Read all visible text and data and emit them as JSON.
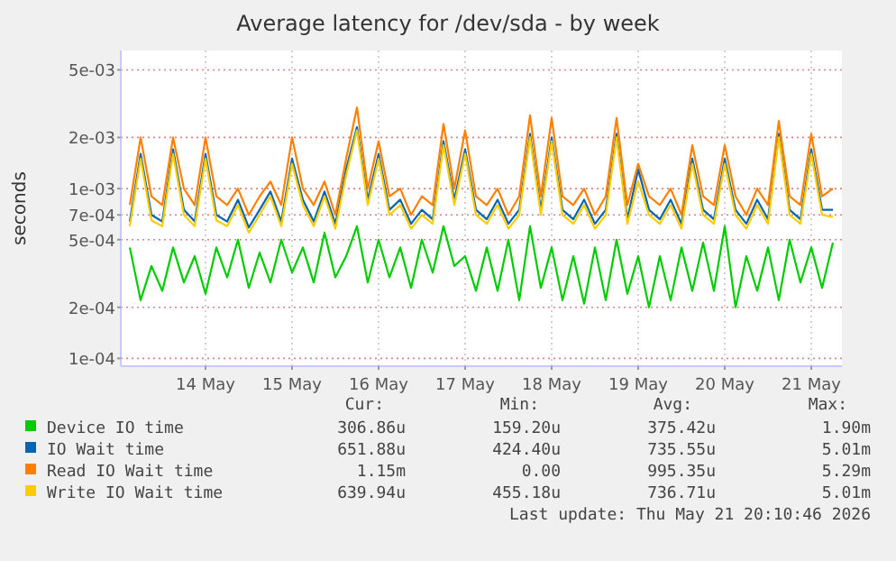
{
  "chart_data": {
    "type": "line",
    "title": "Average latency for /dev/sda - by week",
    "ylabel": "seconds",
    "log": true,
    "grid": true,
    "legend": "bottom",
    "marker": "none",
    "line_style": "solid",
    "x": [
      "2026-05-13T15:00",
      "2026-05-13T18:00",
      "2026-05-13T21:00",
      "2026-05-14T00:00",
      "2026-05-14T03:00",
      "2026-05-14T06:00",
      "2026-05-14T09:00",
      "2026-05-14T12:00",
      "2026-05-14T15:00",
      "2026-05-14T18:00",
      "2026-05-14T21:00",
      "2026-05-15T00:00",
      "2026-05-15T03:00",
      "2026-05-15T06:00",
      "2026-05-15T09:00",
      "2026-05-15T12:00",
      "2026-05-15T15:00",
      "2026-05-15T18:00",
      "2026-05-15T21:00",
      "2026-05-16T00:00",
      "2026-05-16T03:00",
      "2026-05-16T06:00",
      "2026-05-16T09:00",
      "2026-05-16T12:00",
      "2026-05-16T15:00",
      "2026-05-16T18:00",
      "2026-05-16T21:00",
      "2026-05-17T00:00",
      "2026-05-17T03:00",
      "2026-05-17T06:00",
      "2026-05-17T09:00",
      "2026-05-17T12:00",
      "2026-05-17T15:00",
      "2026-05-17T18:00",
      "2026-05-17T21:00",
      "2026-05-18T00:00",
      "2026-05-18T03:00",
      "2026-05-18T06:00",
      "2026-05-18T09:00",
      "2026-05-18T12:00",
      "2026-05-18T15:00",
      "2026-05-18T18:00",
      "2026-05-18T21:00",
      "2026-05-19T00:00",
      "2026-05-19T03:00",
      "2026-05-19T06:00",
      "2026-05-19T09:00",
      "2026-05-19T12:00",
      "2026-05-19T15:00",
      "2026-05-19T18:00",
      "2026-05-19T21:00",
      "2026-05-20T00:00",
      "2026-05-20T03:00",
      "2026-05-20T06:00",
      "2026-05-20T09:00",
      "2026-05-20T12:00",
      "2026-05-20T15:00",
      "2026-05-20T18:00",
      "2026-05-20T21:00",
      "2026-05-21T00:00",
      "2026-05-21T03:00",
      "2026-05-21T06:00",
      "2026-05-21T09:00",
      "2026-05-21T12:00",
      "2026-05-21T15:00",
      "2026-05-21T18:00"
    ],
    "xlim": [
      "2026-05-13T12:30",
      "2026-05-21T20:30"
    ],
    "xticks": [
      {
        "value": "2026-05-14T12:00",
        "label": "14 May"
      },
      {
        "value": "2026-05-15T12:00",
        "label": "15 May"
      },
      {
        "value": "2026-05-16T12:00",
        "label": "16 May"
      },
      {
        "value": "2026-05-17T12:00",
        "label": "17 May"
      },
      {
        "value": "2026-05-18T12:00",
        "label": "18 May"
      },
      {
        "value": "2026-05-19T12:00",
        "label": "19 May"
      },
      {
        "value": "2026-05-20T12:00",
        "label": "20 May"
      },
      {
        "value": "2026-05-21T12:00",
        "label": "21 May"
      }
    ],
    "ylim": [
      9e-05,
      0.0065
    ],
    "yticks": [
      {
        "value": 0.0001,
        "label": "1e-04"
      },
      {
        "value": 0.0002,
        "label": "2e-04"
      },
      {
        "value": 0.0005,
        "label": "5e-04"
      },
      {
        "value": 0.0007,
        "label": "7e-04"
      },
      {
        "value": 0.001,
        "label": "1e-03"
      },
      {
        "value": 0.002,
        "label": "2e-03"
      },
      {
        "value": 0.005,
        "label": "5e-03"
      }
    ],
    "series": [
      {
        "name": "Device IO time",
        "color": "#00cc00",
        "values": [
          0.00045,
          0.00022,
          0.00035,
          0.00025,
          0.00045,
          0.00028,
          0.0004,
          0.00024,
          0.00045,
          0.0003,
          0.0005,
          0.00026,
          0.00042,
          0.00028,
          0.0005,
          0.00032,
          0.00045,
          0.00028,
          0.00055,
          0.0003,
          0.0004,
          0.0006,
          0.00028,
          0.0005,
          0.0003,
          0.00045,
          0.00026,
          0.0005,
          0.00032,
          0.0006,
          0.00035,
          0.0004,
          0.00025,
          0.00045,
          0.00025,
          0.0005,
          0.00022,
          0.0006,
          0.00026,
          0.00045,
          0.00022,
          0.0004,
          0.00021,
          0.00045,
          0.00022,
          0.0005,
          0.00024,
          0.0004,
          0.0002,
          0.0004,
          0.00022,
          0.00045,
          0.00025,
          0.00048,
          0.00025,
          0.0006,
          0.0002,
          0.0004,
          0.00025,
          0.00045,
          0.00022,
          0.0005,
          0.00028,
          0.00045,
          0.00026,
          0.00048
        ]
      },
      {
        "name": "IO Wait time",
        "color": "#0066b3",
        "values": [
          0.00064,
          0.0016,
          0.0007,
          0.00064,
          0.0017,
          0.00075,
          0.00064,
          0.0016,
          0.0007,
          0.00064,
          0.00086,
          0.00059,
          0.00075,
          0.00096,
          0.00064,
          0.0015,
          0.00086,
          0.00064,
          0.00096,
          0.00062,
          0.0013,
          0.0023,
          0.00086,
          0.0016,
          0.00075,
          0.00086,
          0.00062,
          0.00075,
          0.00066,
          0.0019,
          0.00086,
          0.0017,
          0.00075,
          0.00066,
          0.00086,
          0.00062,
          0.00075,
          0.0021,
          0.00075,
          0.002,
          0.00075,
          0.00066,
          0.00086,
          0.00062,
          0.00075,
          0.0021,
          0.00066,
          0.0013,
          0.00075,
          0.00066,
          0.00086,
          0.00062,
          0.0015,
          0.00075,
          0.00066,
          0.0015,
          0.00075,
          0.00062,
          0.00086,
          0.00066,
          0.0021,
          0.00075,
          0.00066,
          0.0017,
          0.00075,
          0.00075
        ]
      },
      {
        "name": "Read IO Wait time",
        "color": "#ff8000",
        "values": [
          0.0008,
          0.002,
          0.0009,
          0.0008,
          0.002,
          0.001,
          0.0008,
          0.002,
          0.0009,
          0.0008,
          0.001,
          0.0007,
          0.0009,
          0.0011,
          0.0008,
          0.002,
          0.001,
          0.0008,
          0.0011,
          0.0007,
          0.0015,
          0.003,
          0.001,
          0.0019,
          0.0009,
          0.001,
          0.0007,
          0.0009,
          0.0008,
          0.0024,
          0.001,
          0.0022,
          0.0009,
          0.0008,
          0.001,
          0.0007,
          0.0009,
          0.0027,
          0.0009,
          0.0026,
          0.0009,
          0.0008,
          0.001,
          0.0007,
          0.0009,
          0.0026,
          0.0008,
          0.0014,
          0.0009,
          0.0008,
          0.001,
          0.0007,
          0.0018,
          0.0009,
          0.0008,
          0.0018,
          0.0009,
          0.0007,
          0.001,
          0.0008,
          0.0025,
          0.0009,
          0.0008,
          0.0021,
          0.0009,
          0.001
        ]
      },
      {
        "name": "Write IO Wait time",
        "color": "#ffcc00",
        "values": [
          0.0006,
          0.0015,
          0.00065,
          0.0006,
          0.0016,
          0.0007,
          0.0006,
          0.0015,
          0.00065,
          0.0006,
          0.0008,
          0.00055,
          0.0007,
          0.0009,
          0.0006,
          0.0014,
          0.0008,
          0.0006,
          0.0009,
          0.00058,
          0.0012,
          0.0022,
          0.0008,
          0.0015,
          0.0007,
          0.0008,
          0.00058,
          0.0007,
          0.00062,
          0.0018,
          0.0008,
          0.0016,
          0.0007,
          0.00062,
          0.0008,
          0.00058,
          0.0007,
          0.002,
          0.0007,
          0.0019,
          0.0007,
          0.00062,
          0.0008,
          0.00058,
          0.0007,
          0.002,
          0.00062,
          0.0011,
          0.0007,
          0.00062,
          0.0008,
          0.00058,
          0.0014,
          0.0007,
          0.00062,
          0.0014,
          0.0007,
          0.00058,
          0.0008,
          0.00062,
          0.002,
          0.0007,
          0.00062,
          0.0016,
          0.0007,
          0.00068
        ]
      }
    ],
    "annotations": [
      "Cur:",
      "Min:",
      "Avg:",
      "Max:",
      "306.86u",
      "159.20u",
      "375.42u",
      "1.90m",
      "651.88u",
      "424.40u",
      "735.55u",
      "5.01m",
      "1.15m",
      "0.00",
      "995.35u",
      "5.29m",
      "639.94u",
      "455.18u",
      "736.71u",
      "5.01m",
      "Last update: Thu May 21 20:10:46 2026"
    ]
  }
}
